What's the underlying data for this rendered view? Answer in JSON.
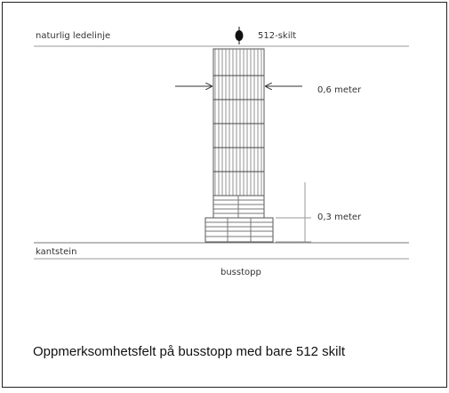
{
  "labels": {
    "guide_line": "naturlig ledelinje",
    "sign": "512-skilt",
    "width": "0,6 meter",
    "depth": "0,3 meter",
    "curb": "kantstein",
    "stop": "busstopp"
  },
  "caption": "Oppmerksomhetsfelt på busstopp med bare 512 skilt"
}
